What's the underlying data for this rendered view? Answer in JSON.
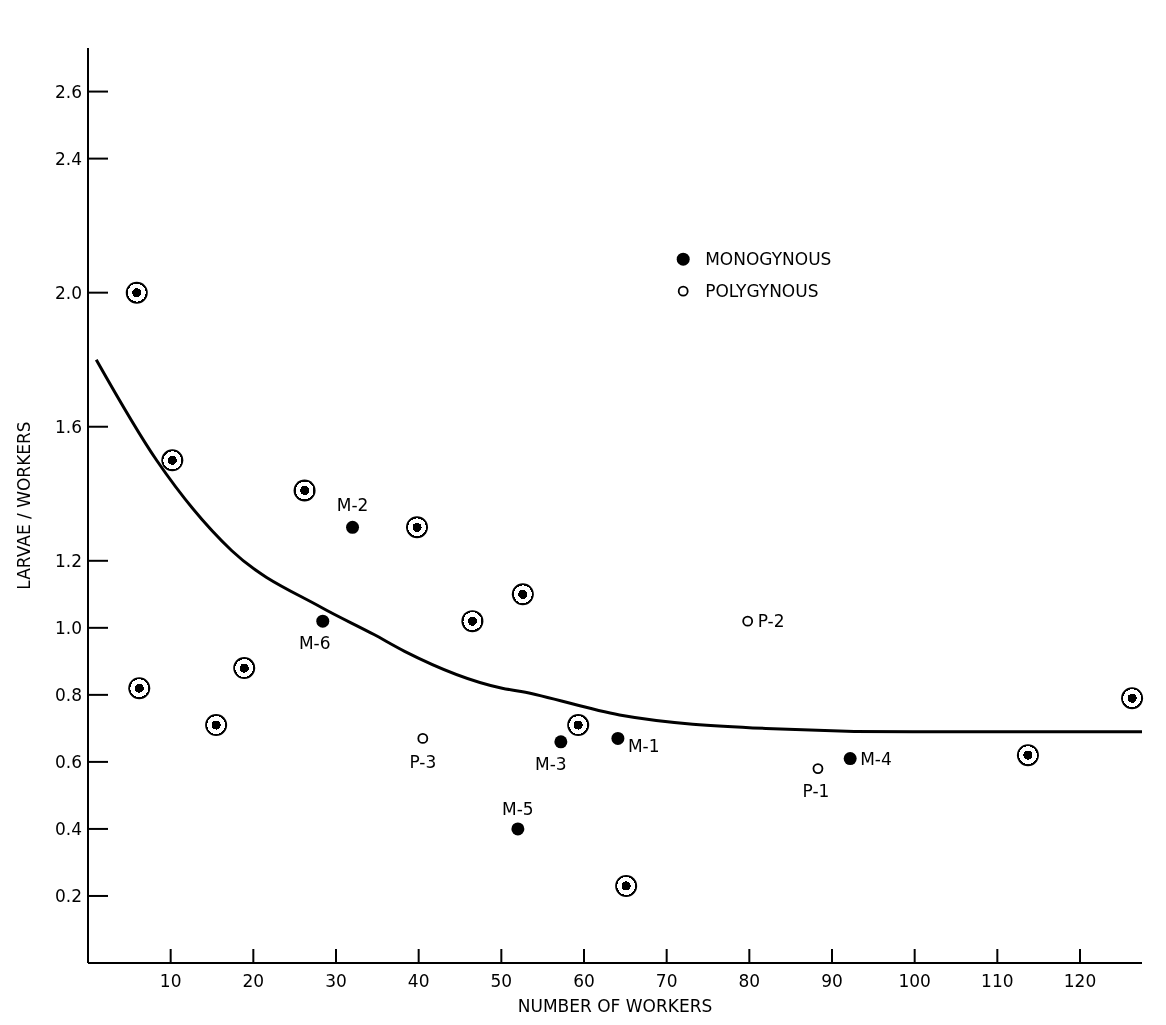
{
  "chart_data": {
    "type": "scatter",
    "xlabel": "NUMBER OF WORKERS",
    "ylabel": "LARVAE / WORKERS",
    "xlim": [
      0,
      127.5
    ],
    "ylim": [
      0,
      2.73
    ],
    "xticks": [
      10,
      20,
      30,
      40,
      50,
      60,
      70,
      80,
      90,
      100,
      110,
      120
    ],
    "yticks": [
      {
        "value": 0.2,
        "label": "0.2"
      },
      {
        "value": 0.4,
        "label": "0.4"
      },
      {
        "value": 0.6,
        "label": "0.6"
      },
      {
        "value": 0.8,
        "label": "0.8"
      },
      {
        "value": 1.0,
        "label": "1.0"
      },
      {
        "value": 1.2,
        "label": "1.2"
      },
      {
        "value": 1.6,
        "label": "1.6"
      },
      {
        "value": 2.0,
        "label": "2.0"
      },
      {
        "value": 2.4,
        "label": "2.4"
      },
      {
        "value": 2.6,
        "label": "2.6"
      }
    ],
    "grid": false,
    "legend": "top right",
    "marker": "circle",
    "series": [
      {
        "name": "MONOGYNOUS",
        "color": "#000000",
        "x": [
          32.0,
          28.4,
          57.2,
          64.1,
          92.2,
          52.0
        ],
        "values": [
          1.3,
          1.02,
          0.66,
          0.67,
          0.61,
          0.4
        ]
      },
      {
        "name": "POLYGYNOUS",
        "color": "#000000",
        "x": [
          79.8,
          40.5,
          88.3
        ],
        "values": [
          1.02,
          0.67,
          0.58
        ]
      },
      {
        "color": "#000000",
        "x": [
          5.9,
          10.2,
          26.2,
          39.8,
          52.6,
          46.5,
          18.9,
          6.2,
          15.5,
          59.3,
          65.1,
          113.7,
          126.3
        ],
        "values": [
          2.0,
          1.5,
          1.41,
          1.3,
          1.1,
          1.02,
          0.88,
          0.82,
          0.71,
          0.71,
          0.23,
          0.62,
          0.79
        ]
      },
      {
        "type": "line",
        "marker": "none",
        "color": "#000000",
        "x": [
          1.0,
          8.3,
          17.4,
          28.3,
          34.6,
          38.3,
          50.1,
          52.4,
          64.3,
          82,
          99.8,
          127.5
        ],
        "values": [
          1.8,
          1.5,
          1.23,
          1.06,
          0.98,
          0.93,
          0.82,
          0.81,
          0.74,
          0.7,
          0.69,
          0.69
        ]
      }
    ],
    "annotations": [
      {
        "text": "M-2",
        "x": 32.0,
        "y": 1.3
      },
      {
        "text": "M-6",
        "x": 28.4,
        "y": 1.02
      },
      {
        "text": "M-3",
        "x": 57.2,
        "y": 0.66
      },
      {
        "text": "M-1",
        "x": 64.1,
        "y": 0.67
      },
      {
        "text": "M-4",
        "x": 92.2,
        "y": 0.61
      },
      {
        "text": "M-5",
        "x": 52.0,
        "y": 0.4
      },
      {
        "text": "P-2",
        "x": 79.8,
        "y": 1.02
      },
      {
        "text": "P-3",
        "x": 40.5,
        "y": 0.67
      },
      {
        "text": "P-1",
        "x": 88.3,
        "y": 0.58
      }
    ]
  }
}
